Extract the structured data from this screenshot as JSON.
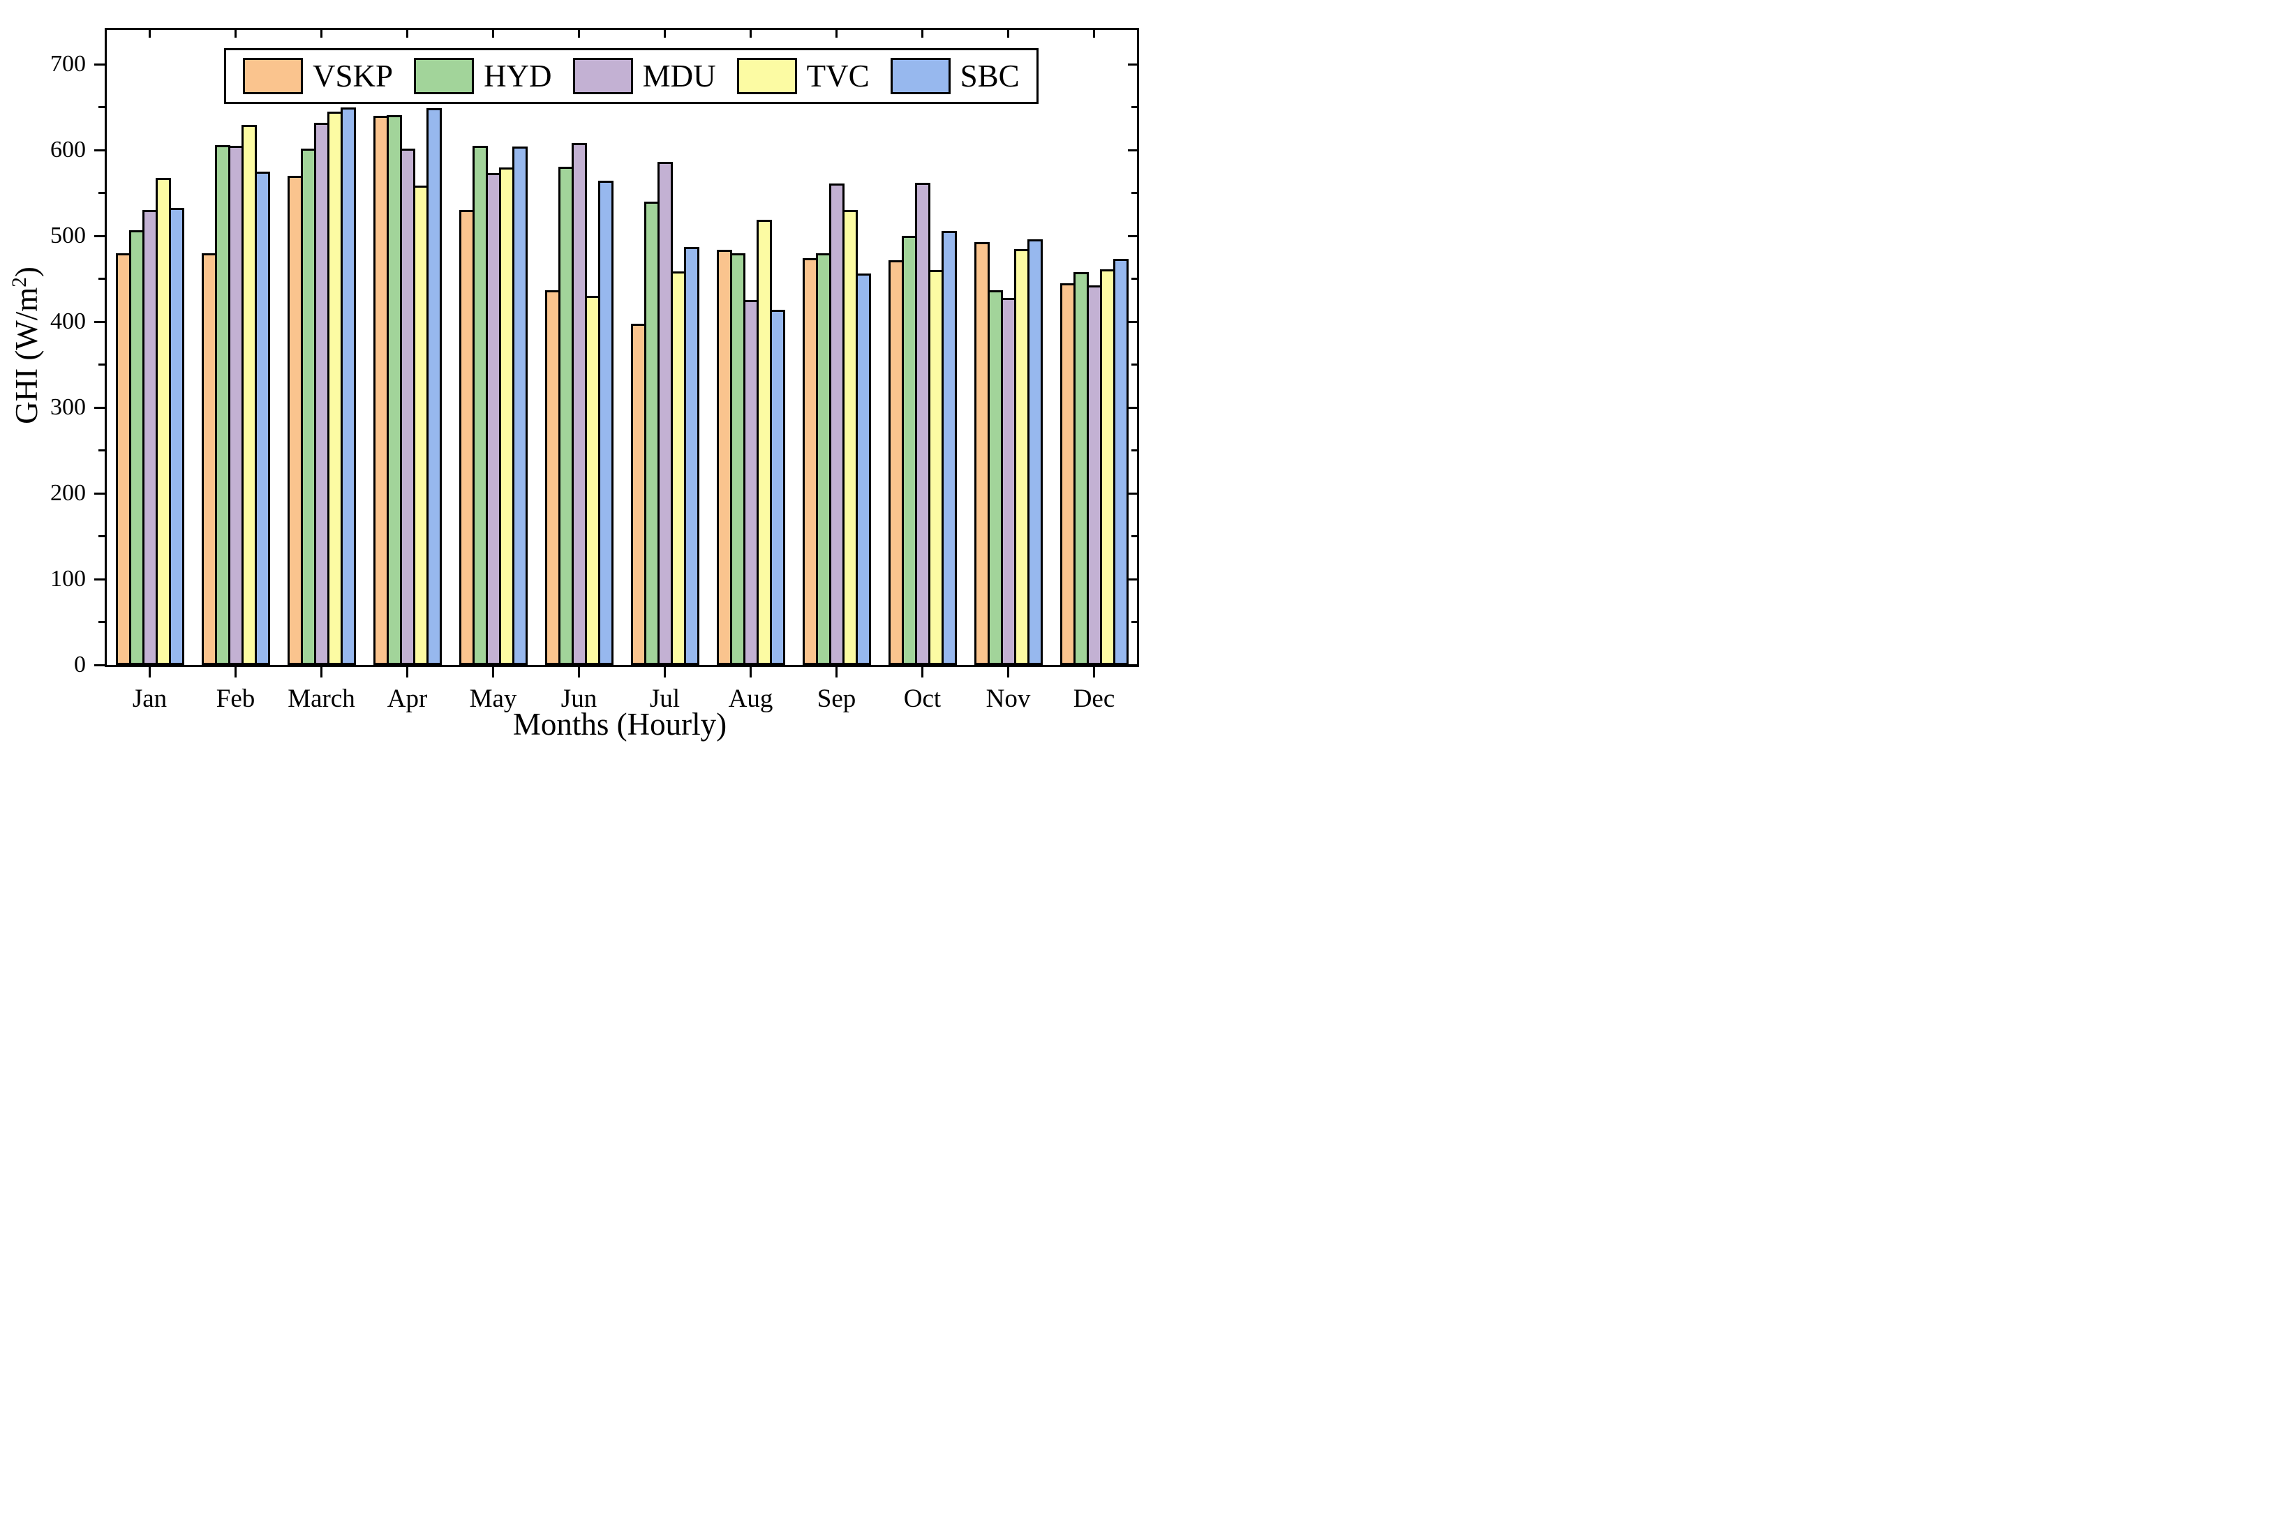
{
  "figure": {
    "xlabel": "Months (Hourly)",
    "ylabel_prefix": "GHI (W/m",
    "ylabel_sup": "2",
    "ylabel_suffix": ")"
  },
  "chart_data": {
    "type": "bar",
    "title": "",
    "xlabel": "Months (Hourly)",
    "ylabel": "GHI (W/m^2)",
    "categories": [
      "Jan",
      "Feb",
      "March",
      "Apr",
      "May",
      "Jun",
      "Jul",
      "Aug",
      "Sep",
      "Oct",
      "Nov",
      "Dec"
    ],
    "series": [
      {
        "name": "VSKP",
        "color": "#FAC48E",
        "values": [
          480,
          480,
          570,
          640,
          530,
          437,
          398,
          484,
          474,
          472,
          493,
          445
        ]
      },
      {
        "name": "HYD",
        "color": "#A2D49A",
        "values": [
          507,
          606,
          602,
          641,
          605,
          581,
          540,
          480,
          480,
          500,
          437,
          458
        ]
      },
      {
        "name": "MDU",
        "color": "#C3B1D3",
        "values": [
          530,
          605,
          632,
          602,
          573,
          608,
          586,
          425,
          561,
          562,
          428,
          442
        ]
      },
      {
        "name": "TVC",
        "color": "#FCFBA3",
        "values": [
          568,
          629,
          645,
          559,
          580,
          430,
          459,
          519,
          530,
          460,
          485,
          461
        ]
      },
      {
        "name": "SBC",
        "color": "#97B8EE",
        "values": [
          533,
          575,
          650,
          649,
          604,
          564,
          487,
          414,
          456,
          506,
          496,
          473
        ]
      }
    ],
    "ylim": [
      0,
      700
    ],
    "y_axis_max_display": 740,
    "ytick_major": 100,
    "ytick_minor": 50,
    "ytick_labels": [
      "0",
      "100",
      "200",
      "300",
      "400",
      "500",
      "600",
      "700"
    ],
    "grid": false,
    "bar_edge_color": "#000000",
    "legend_position": "top-center-inside"
  }
}
